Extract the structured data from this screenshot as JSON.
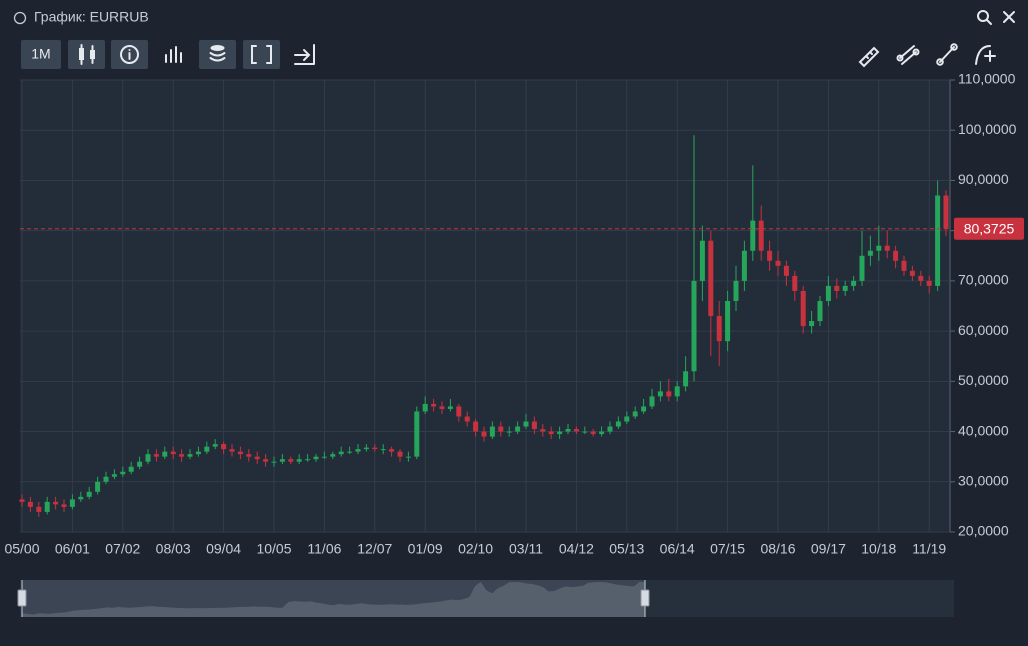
{
  "chart_data": {
    "type": "candlestick",
    "title": "График: EURRUB",
    "interval": "1M",
    "categories": [
      "05/00",
      null,
      null,
      null,
      null,
      null,
      "06/01",
      null,
      null,
      null,
      null,
      null,
      "07/02",
      null,
      null,
      null,
      null,
      null,
      "08/03",
      null,
      null,
      null,
      null,
      null,
      "09/04",
      null,
      null,
      null,
      null,
      null,
      "10/05",
      null,
      null,
      null,
      null,
      null,
      "11/06",
      null,
      null,
      null,
      null,
      null,
      "12/07",
      null,
      null,
      null,
      null,
      null,
      "01/09",
      null,
      null,
      null,
      null,
      null,
      "02/10",
      null,
      null,
      null,
      null,
      null,
      "03/11",
      null,
      null,
      null,
      null,
      null,
      "04/12",
      null,
      null,
      null,
      null,
      null,
      "05/13",
      null,
      null,
      null,
      null,
      null,
      "06/14",
      null,
      null,
      null,
      null,
      null,
      "07/15",
      null,
      null,
      null,
      null,
      null,
      "08/16",
      null,
      null,
      null,
      null,
      null,
      "09/17",
      null,
      null,
      null,
      null,
      null,
      "10/18",
      null,
      null,
      null,
      null,
      null,
      "11/19",
      null,
      null
    ],
    "open": [
      26.5,
      26,
      25,
      24,
      26,
      25.5,
      25,
      26.5,
      27,
      28,
      30,
      31,
      31.5,
      32,
      33,
      34,
      35.5,
      35,
      36,
      35.5,
      35,
      35.5,
      36,
      37,
      37.5,
      36.5,
      36,
      35.5,
      35,
      34.5,
      34,
      34,
      34.5,
      34,
      34.5,
      34.5,
      35,
      35,
      35.5,
      36,
      36,
      36.5,
      36.8,
      36.5,
      36.5,
      36,
      35,
      35,
      44,
      45.5,
      45,
      44.5,
      45,
      43,
      42,
      40,
      39,
      41,
      40,
      40,
      41,
      42,
      40.5,
      40,
      39.5,
      40,
      40.5,
      40,
      40,
      39.5,
      40,
      41,
      42,
      43,
      44,
      45,
      47,
      48,
      47,
      49,
      52,
      70,
      78,
      63,
      58,
      66,
      70,
      76,
      82,
      76,
      74,
      73,
      71,
      68,
      61,
      62,
      66,
      69,
      68,
      69,
      70,
      75,
      76,
      77,
      76,
      74,
      72,
      71,
      70,
      69,
      87
    ],
    "high": [
      27.5,
      27,
      26,
      27,
      27,
      26.5,
      27.5,
      28,
      29,
      31,
      32,
      32.5,
      33,
      34,
      35,
      36.5,
      36.5,
      37,
      37,
      36.5,
      36.5,
      37,
      38,
      38.5,
      38,
      37.5,
      37,
      36.5,
      36,
      35.5,
      35,
      35.5,
      35,
      35.5,
      35.5,
      35.5,
      36,
      36,
      37,
      37,
      37.5,
      37.5,
      37.5,
      37.5,
      37,
      36.5,
      36,
      45,
      47,
      46.5,
      46,
      46.5,
      45.5,
      44,
      42.5,
      41,
      42,
      42,
      41,
      42,
      43.5,
      43,
      41.5,
      41,
      41,
      41.5,
      41,
      41,
      40.5,
      41,
      42,
      43,
      44,
      45,
      46.5,
      48.5,
      50,
      50.5,
      50,
      55,
      99,
      81,
      80,
      66,
      68,
      73,
      78,
      93,
      85,
      78,
      76,
      74,
      72,
      69,
      64,
      67,
      71,
      70.5,
      70,
      71,
      80,
      79,
      81,
      80,
      77,
      75,
      73,
      72,
      71,
      90,
      88
    ],
    "low": [
      25,
      24,
      23,
      23.5,
      24.5,
      24,
      24.5,
      26,
      26.5,
      27.5,
      29.5,
      30.5,
      31,
      31.5,
      32.5,
      33.5,
      34,
      34.5,
      34.5,
      34,
      34.5,
      35,
      35.5,
      36.5,
      35.5,
      35,
      34.5,
      34,
      33.5,
      33,
      33,
      33.5,
      33.5,
      33.5,
      34,
      34,
      34.5,
      34.5,
      35,
      35.5,
      35.5,
      36,
      36,
      35.5,
      35,
      34,
      34,
      34.5,
      43.5,
      44,
      43.5,
      44,
      42,
      41,
      39,
      38,
      38.5,
      39,
      39,
      39.5,
      40.5,
      39.5,
      39,
      38.5,
      38.5,
      39.5,
      39.5,
      39.5,
      39,
      39,
      39.5,
      40.5,
      41.5,
      42.5,
      43.5,
      44.5,
      46,
      46,
      46,
      48,
      50,
      66,
      55,
      53,
      56,
      64,
      68,
      74,
      74,
      72,
      71,
      69,
      66,
      59.5,
      59.5,
      61,
      65,
      66.5,
      67,
      68,
      69,
      73,
      74,
      74.5,
      72.5,
      71,
      70,
      69,
      67.5,
      68,
      79
    ],
    "close": [
      26,
      25,
      24,
      26,
      25.5,
      25,
      26.5,
      27,
      28,
      30,
      31,
      31.5,
      32,
      33,
      34,
      35.5,
      35,
      36,
      35.5,
      35,
      35.5,
      36,
      37,
      37.5,
      36.5,
      36,
      35.5,
      35,
      34.5,
      34,
      34,
      34.5,
      34,
      34.5,
      34.5,
      35,
      35,
      35.5,
      36,
      36,
      36.5,
      36.8,
      36.5,
      36.5,
      36,
      35,
      35,
      44,
      45.5,
      45,
      44.5,
      45,
      43,
      42,
      40,
      39,
      41,
      40,
      40,
      41,
      42,
      40.5,
      40,
      39.5,
      40,
      40.5,
      40,
      40,
      39.5,
      40,
      41,
      42,
      43,
      44,
      45,
      47,
      48,
      47,
      49,
      52,
      70,
      78,
      63,
      58,
      66,
      70,
      76,
      82,
      76,
      74,
      73,
      71,
      68,
      61,
      62,
      66,
      69,
      68,
      69,
      70,
      75,
      76,
      77,
      76,
      74,
      72,
      71,
      70,
      69,
      87,
      80.3725
    ],
    "up_color": "#26a65b",
    "down_color": "#c8323f",
    "last_price": {
      "value": 80.3725,
      "label": "80,3725"
    },
    "last_price_color": "#c8323f",
    "ylim": [
      20,
      110
    ],
    "yticks": [
      {
        "value": 20,
        "label": "20,0000"
      },
      {
        "value": 30,
        "label": "30,0000"
      },
      {
        "value": 40,
        "label": "40,0000"
      },
      {
        "value": 50,
        "label": "50,0000"
      },
      {
        "value": 60,
        "label": "60,0000"
      },
      {
        "value": 70,
        "label": "70,0000"
      },
      {
        "value": 80,
        "label": "80,0000"
      },
      {
        "value": 90,
        "label": "90,0000"
      },
      {
        "value": 100,
        "label": "100,0000"
      },
      {
        "value": 110,
        "label": "110,0000"
      }
    ],
    "grid": true
  }
}
